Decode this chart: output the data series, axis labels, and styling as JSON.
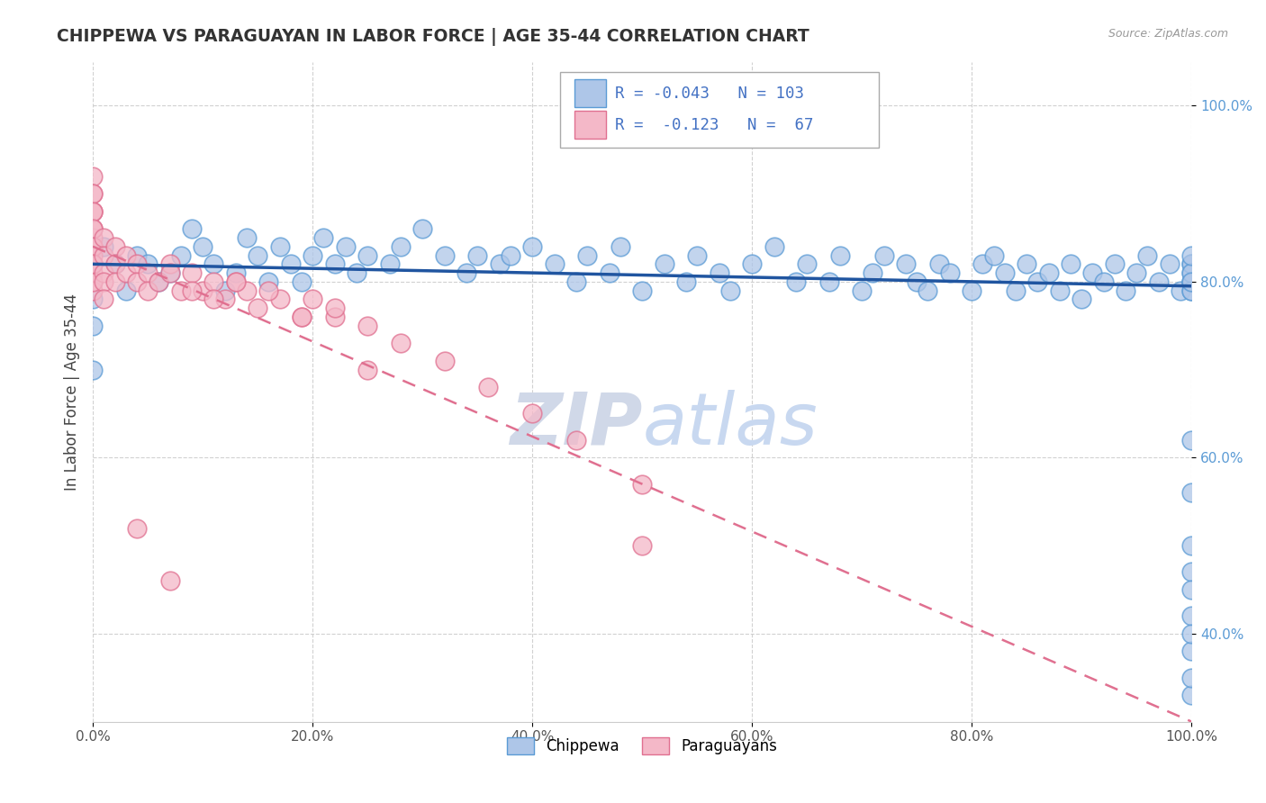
{
  "title": "CHIPPEWA VS PARAGUAYAN IN LABOR FORCE | AGE 35-44 CORRELATION CHART",
  "source": "Source: ZipAtlas.com",
  "ylabel": "In Labor Force | Age 35-44",
  "r_chippewa": -0.043,
  "n_chippewa": 103,
  "r_paraguayan": -0.123,
  "n_paraguayan": 67,
  "chippewa_color": "#aec6e8",
  "chippewa_edge": "#5b9bd5",
  "paraguayan_color": "#f4b8c8",
  "paraguayan_edge": "#e07090",
  "trend_chippewa_color": "#2055a0",
  "trend_paraguayan_color": "#e07090",
  "watermark_color": "#d0d8e8",
  "grid_color": "#cccccc",
  "bg_color": "#ffffff",
  "legend_label_chippewa": "Chippewa",
  "legend_label_paraguayan": "Paraguayans",
  "ytick_color": "#5b9bd5",
  "xtick_color": "#555555",
  "chippewa_x": [
    0.0,
    0.0,
    0.0,
    0.0,
    0.01,
    0.02,
    0.03,
    0.04,
    0.05,
    0.06,
    0.07,
    0.08,
    0.09,
    0.1,
    0.11,
    0.12,
    0.13,
    0.14,
    0.15,
    0.16,
    0.17,
    0.18,
    0.19,
    0.2,
    0.21,
    0.22,
    0.23,
    0.24,
    0.25,
    0.27,
    0.28,
    0.3,
    0.32,
    0.34,
    0.35,
    0.37,
    0.38,
    0.4,
    0.42,
    0.44,
    0.45,
    0.47,
    0.48,
    0.5,
    0.52,
    0.54,
    0.55,
    0.57,
    0.58,
    0.6,
    0.62,
    0.64,
    0.65,
    0.67,
    0.68,
    0.7,
    0.71,
    0.72,
    0.74,
    0.75,
    0.76,
    0.77,
    0.78,
    0.8,
    0.81,
    0.82,
    0.83,
    0.84,
    0.85,
    0.86,
    0.87,
    0.88,
    0.89,
    0.9,
    0.91,
    0.92,
    0.93,
    0.94,
    0.95,
    0.96,
    0.97,
    0.98,
    0.99,
    1.0,
    1.0,
    1.0,
    1.0,
    1.0,
    1.0,
    1.0,
    1.0,
    1.0,
    1.0,
    1.0,
    1.0,
    1.0,
    1.0,
    1.0,
    1.0,
    1.0,
    1.0,
    1.0,
    1.0
  ],
  "chippewa_y": [
    0.78,
    0.82,
    0.75,
    0.7,
    0.84,
    0.82,
    0.79,
    0.83,
    0.82,
    0.8,
    0.81,
    0.83,
    0.86,
    0.84,
    0.82,
    0.79,
    0.81,
    0.85,
    0.83,
    0.8,
    0.84,
    0.82,
    0.8,
    0.83,
    0.85,
    0.82,
    0.84,
    0.81,
    0.83,
    0.82,
    0.84,
    0.86,
    0.83,
    0.81,
    0.83,
    0.82,
    0.83,
    0.84,
    0.82,
    0.8,
    0.83,
    0.81,
    0.84,
    0.79,
    0.82,
    0.8,
    0.83,
    0.81,
    0.79,
    0.82,
    0.84,
    0.8,
    0.82,
    0.8,
    0.83,
    0.79,
    0.81,
    0.83,
    0.82,
    0.8,
    0.79,
    0.82,
    0.81,
    0.79,
    0.82,
    0.83,
    0.81,
    0.79,
    0.82,
    0.8,
    0.81,
    0.79,
    0.82,
    0.78,
    0.81,
    0.8,
    0.82,
    0.79,
    0.81,
    0.83,
    0.8,
    0.82,
    0.79,
    0.8,
    0.82,
    0.79,
    0.81,
    0.8,
    0.82,
    0.79,
    0.81,
    0.83,
    0.8,
    0.56,
    0.62,
    0.47,
    0.42,
    0.5,
    0.38,
    0.33,
    0.45,
    0.4,
    0.35
  ],
  "paraguayan_x": [
    0.0,
    0.0,
    0.0,
    0.0,
    0.0,
    0.0,
    0.0,
    0.0,
    0.0,
    0.0,
    0.0,
    0.0,
    0.0,
    0.0,
    0.0,
    0.0,
    0.0,
    0.0,
    0.0,
    0.0,
    0.0,
    0.01,
    0.01,
    0.01,
    0.01,
    0.01,
    0.02,
    0.02,
    0.02,
    0.03,
    0.03,
    0.04,
    0.04,
    0.05,
    0.05,
    0.06,
    0.07,
    0.08,
    0.09,
    0.1,
    0.11,
    0.12,
    0.13,
    0.14,
    0.15,
    0.17,
    0.19,
    0.2,
    0.22,
    0.07,
    0.09,
    0.11,
    0.13,
    0.16,
    0.19,
    0.22,
    0.25,
    0.28,
    0.32,
    0.36,
    0.4,
    0.44,
    0.5,
    0.25,
    0.07,
    0.04,
    0.5
  ],
  "paraguayan_y": [
    0.92,
    0.9,
    0.88,
    0.86,
    0.85,
    0.84,
    0.83,
    0.82,
    0.81,
    0.8,
    0.79,
    0.88,
    0.86,
    0.84,
    0.82,
    0.8,
    0.9,
    0.88,
    0.86,
    0.84,
    0.82,
    0.85,
    0.83,
    0.81,
    0.8,
    0.78,
    0.84,
    0.82,
    0.8,
    0.83,
    0.81,
    0.82,
    0.8,
    0.81,
    0.79,
    0.8,
    0.82,
    0.79,
    0.81,
    0.79,
    0.8,
    0.78,
    0.8,
    0.79,
    0.77,
    0.78,
    0.76,
    0.78,
    0.76,
    0.81,
    0.79,
    0.78,
    0.8,
    0.79,
    0.76,
    0.77,
    0.75,
    0.73,
    0.71,
    0.68,
    0.65,
    0.62,
    0.57,
    0.7,
    0.46,
    0.52,
    0.5
  ],
  "xlim": [
    0.0,
    1.0
  ],
  "ylim": [
    0.3,
    1.05
  ],
  "xtick_vals": [
    0.0,
    0.2,
    0.4,
    0.6,
    0.8,
    1.0
  ],
  "xtick_labels": [
    "0.0%",
    "20.0%",
    "40.0%",
    "60.0%",
    "80.0%",
    "100.0%"
  ],
  "ytick_right_vals": [
    1.0,
    0.8,
    0.6,
    0.4
  ],
  "ytick_right_labels": [
    "100.0%",
    "80.0%",
    "60.0%",
    "40.0%"
  ],
  "trend_chip_x0": 0.0,
  "trend_chip_x1": 1.0,
  "trend_chip_y0": 0.82,
  "trend_chip_y1": 0.795,
  "trend_para_x0": 0.0,
  "trend_para_x1": 1.0,
  "trend_para_y0": 0.84,
  "trend_para_y1": 0.3
}
